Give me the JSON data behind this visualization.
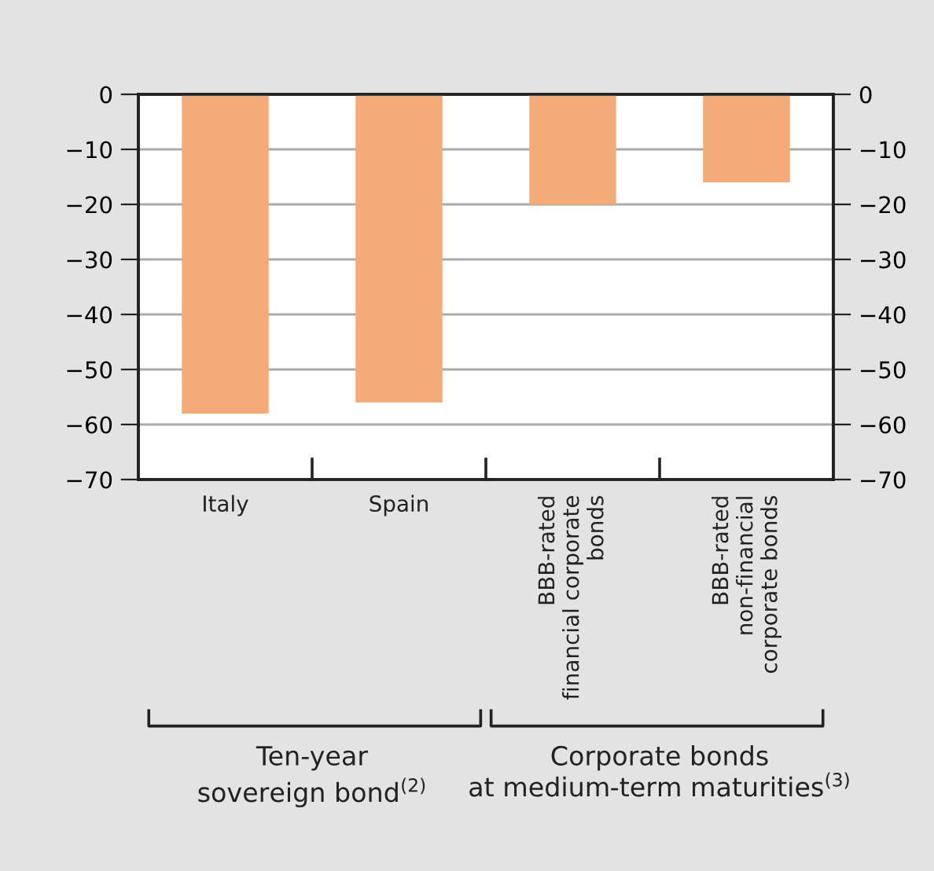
{
  "chart_data": {
    "type": "bar",
    "categories": [
      "Italy",
      "Spain",
      "BBB-rated\nfinancial corporate\nbonds",
      "BBB-rated\nnon-financial\ncorporate bonds"
    ],
    "values": [
      -58,
      -56,
      -20,
      -16
    ],
    "color": "#f5ab78",
    "ylim": [
      -70,
      0
    ],
    "yticks": [
      0,
      -10,
      -20,
      -30,
      -40,
      -50,
      -60,
      -70
    ],
    "y2lim": [
      -70,
      0
    ],
    "y2ticks": [
      0,
      -10,
      -20,
      -30,
      -40,
      -50,
      -60,
      -70
    ],
    "grid": "y",
    "annotations": [
      "Ten-year\nsovereign bond$^{(2)}$",
      "Corporate bonds\nat medium-term maturities$^{(3)}$"
    ]
  }
}
